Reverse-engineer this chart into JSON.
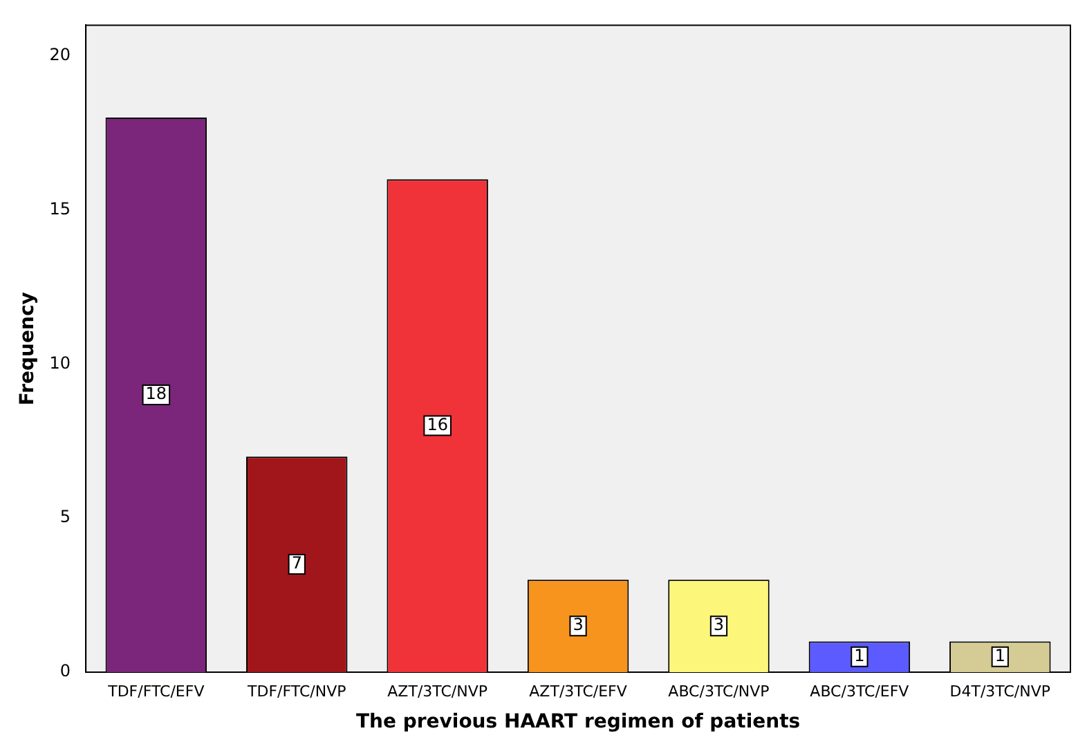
{
  "chart_data": {
    "type": "bar",
    "xlabel": "The previous HAART regimen of patients",
    "ylabel": "Frequency",
    "categories": [
      "TDF/FTC/EFV",
      "TDF/FTC/NVP",
      "AZT/3TC/NVP",
      "AZT/3TC/EFV",
      "ABC/3TC/NVP",
      "ABC/3TC/EFV",
      "D4T/3TC/NVP"
    ],
    "values": [
      18,
      7,
      16,
      3,
      3,
      1,
      1
    ],
    "colors": [
      "#7b267b",
      "#a0161b",
      "#ef3339",
      "#f7941d",
      "#fcf77a",
      "#5b5bff",
      "#d4cc94"
    ],
    "ylim": [
      0,
      21
    ],
    "yticks": [
      0,
      5,
      10,
      15,
      20
    ],
    "grid": false,
    "legend": false,
    "data_labels": true
  }
}
